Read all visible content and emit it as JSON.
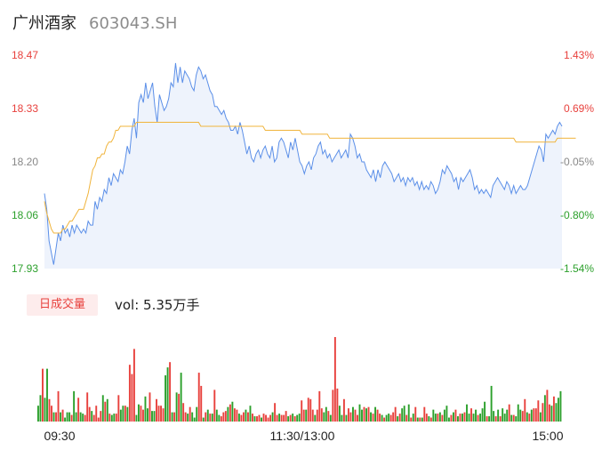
{
  "stock": {
    "name": "广州酒家",
    "code": "603043.SH"
  },
  "volume_tab": {
    "label": "日成交量",
    "vol_prefix": "vol: ",
    "vol_value": "5.35万手"
  },
  "colors": {
    "price": "#5b8fe8",
    "avg": "#f0b43c",
    "up": "#e8413d",
    "down": "#2ca02c",
    "fill": "#eef3fc",
    "neutral": "#888888"
  },
  "chart_data": [
    {
      "type": "line",
      "name": "intraday-price",
      "y_ticks": [
        "18.47",
        "18.33",
        "18.20",
        "18.06",
        "17.93"
      ],
      "pct_ticks": [
        "1.43%",
        "0.69%",
        "-0.05%",
        "-0.80%",
        "-1.54%"
      ],
      "ylim": [
        17.93,
        18.47
      ],
      "series": [
        {
          "values": [
            18.12,
            18.08,
            18.0,
            17.97,
            17.94,
            17.98,
            18.02,
            18.0,
            18.04,
            18.02,
            18.03,
            18.01,
            18.04,
            18.02,
            18.04,
            18.03,
            18.02,
            18.03,
            18.02,
            18.05,
            18.04,
            18.04,
            18.1,
            18.08,
            18.11,
            18.1,
            18.13,
            18.12,
            18.16,
            18.14,
            18.17,
            18.16,
            18.15,
            18.18,
            18.17,
            18.2,
            18.24,
            18.22,
            18.28,
            18.31,
            18.26,
            18.35,
            18.37,
            18.35,
            18.4,
            18.36,
            18.38,
            18.4,
            18.34,
            18.3,
            18.37,
            18.35,
            18.33,
            18.34,
            18.36,
            18.4,
            18.39,
            18.45,
            18.4,
            18.44,
            18.4,
            18.43,
            18.42,
            18.41,
            18.39,
            18.38,
            18.42,
            18.44,
            18.43,
            18.41,
            18.42,
            18.4,
            18.38,
            18.37,
            18.34,
            18.34,
            18.33,
            18.32,
            18.33,
            18.31,
            18.3,
            18.28,
            18.28,
            18.29,
            18.27,
            18.3,
            18.28,
            18.25,
            18.22,
            18.24,
            18.21,
            18.2,
            18.22,
            18.23,
            18.21,
            18.23,
            18.24,
            18.22,
            18.21,
            18.24,
            18.2,
            18.21,
            18.25,
            18.26,
            18.25,
            18.23,
            18.21,
            18.25,
            18.23,
            18.26,
            18.23,
            18.2,
            18.19,
            18.17,
            18.19,
            18.2,
            18.18,
            18.21,
            18.22,
            18.24,
            18.25,
            18.22,
            18.23,
            18.21,
            18.22,
            18.2,
            18.21,
            18.22,
            18.23,
            18.21,
            18.22,
            18.23,
            18.21,
            18.27,
            18.26,
            18.24,
            18.21,
            18.22,
            18.2,
            18.2,
            18.18,
            18.17,
            18.16,
            18.18,
            18.15,
            18.18,
            18.16,
            18.19,
            18.2,
            18.19,
            18.18,
            18.17,
            18.15,
            18.16,
            18.17,
            18.15,
            18.16,
            18.14,
            18.16,
            18.15,
            18.16,
            18.14,
            18.15,
            18.13,
            18.15,
            18.13,
            18.14,
            18.13,
            18.15,
            18.14,
            18.12,
            18.13,
            18.15,
            18.18,
            18.17,
            18.19,
            18.18,
            18.17,
            18.15,
            18.16,
            18.13,
            18.16,
            18.15,
            18.16,
            18.17,
            18.18,
            18.16,
            18.13,
            18.14,
            18.12,
            18.13,
            18.12,
            18.13,
            18.12,
            18.11,
            18.14,
            18.15,
            18.16,
            18.15,
            18.14,
            18.13,
            18.15,
            18.14,
            18.12,
            18.14,
            18.12,
            18.13,
            18.14,
            18.13,
            18.13,
            18.14,
            18.16,
            18.18,
            18.2,
            18.22,
            18.24,
            18.23,
            18.2,
            18.27,
            18.26,
            18.27,
            18.28,
            18.27,
            18.29,
            18.3,
            18.29
          ]
        },
        {
          "values": [
            18.1,
            18.07,
            18.05,
            18.03,
            18.02,
            18.02,
            18.02,
            18.02,
            18.03,
            18.03,
            18.04,
            18.05,
            18.05,
            18.06,
            18.07,
            18.08,
            18.08,
            18.08,
            18.1,
            18.12,
            18.15,
            18.18,
            18.19,
            18.21,
            18.21,
            18.22,
            18.22,
            18.24,
            18.25,
            18.25,
            18.26,
            18.28,
            18.28,
            18.29,
            18.29,
            18.29,
            18.29,
            18.29,
            18.29,
            18.29,
            18.3,
            18.3,
            18.3,
            18.3,
            18.3,
            18.3,
            18.3,
            18.3,
            18.3,
            18.3,
            18.3,
            18.3,
            18.3,
            18.3,
            18.3,
            18.3,
            18.3,
            18.3,
            18.3,
            18.3,
            18.3,
            18.3,
            18.3,
            18.3,
            18.3,
            18.3,
            18.3,
            18.3,
            18.29,
            18.29,
            18.29,
            18.29,
            18.29,
            18.29,
            18.29,
            18.29,
            18.29,
            18.29,
            18.29,
            18.29,
            18.29,
            18.29,
            18.29,
            18.29,
            18.29,
            18.29,
            18.29,
            18.29,
            18.29,
            18.29,
            18.29,
            18.29,
            18.29,
            18.29,
            18.29,
            18.29,
            18.28,
            18.28,
            18.28,
            18.28,
            18.28,
            18.28,
            18.28,
            18.28,
            18.28,
            18.28,
            18.28,
            18.28,
            18.28,
            18.28,
            18.28,
            18.28,
            18.27,
            18.27,
            18.27,
            18.27,
            18.27,
            18.27,
            18.27,
            18.27,
            18.27,
            18.27,
            18.27,
            18.27,
            18.26,
            18.26,
            18.26,
            18.26,
            18.26,
            18.26,
            18.26,
            18.26,
            18.26,
            18.26,
            18.26,
            18.26,
            18.26,
            18.26,
            18.26,
            18.26,
            18.26,
            18.26,
            18.26,
            18.26,
            18.26,
            18.26,
            18.26,
            18.26,
            18.26,
            18.26,
            18.26,
            18.26,
            18.26,
            18.26,
            18.26,
            18.26,
            18.26,
            18.26,
            18.26,
            18.26,
            18.26,
            18.26,
            18.26,
            18.26,
            18.26,
            18.26,
            18.26,
            18.26,
            18.26,
            18.26,
            18.26,
            18.26,
            18.26,
            18.26,
            18.26,
            18.26,
            18.26,
            18.26,
            18.26,
            18.26,
            18.26,
            18.26,
            18.26,
            18.26,
            18.26,
            18.26,
            18.26,
            18.26,
            18.26,
            18.26,
            18.26,
            18.26,
            18.26,
            18.26,
            18.26,
            18.26,
            18.26,
            18.26,
            18.26,
            18.26,
            18.26,
            18.26,
            18.26,
            18.26,
            18.26,
            18.25,
            18.25,
            18.25,
            18.25,
            18.25,
            18.25,
            18.25,
            18.25,
            18.25,
            18.25,
            18.25,
            18.25,
            18.25,
            18.25,
            18.25,
            18.25,
            18.25,
            18.25,
            18.26,
            18.26,
            18.26,
            18.26,
            18.26,
            18.26,
            18.26,
            18.26,
            18.26
          ]
        }
      ]
    },
    {
      "type": "bar",
      "name": "volume",
      "x_ticks": [
        "09:30",
        "11:30/13:00",
        "15:00"
      ],
      "values": [
        12,
        20,
        40,
        18,
        40,
        17,
        12,
        7,
        7,
        23,
        7,
        9,
        3,
        7,
        7,
        5,
        23,
        7,
        18,
        7,
        6,
        5,
        22,
        11,
        8,
        5,
        12,
        3,
        8,
        20,
        15,
        17,
        6,
        5,
        6,
        6,
        20,
        9,
        12,
        12,
        11,
        43,
        36,
        55,
        5,
        13,
        12,
        9,
        19,
        10,
        22,
        8,
        8,
        17,
        12,
        12,
        10,
        35,
        41,
        45,
        7,
        7,
        22,
        21,
        37,
        14,
        7,
        6,
        11,
        7,
        3,
        11,
        37,
        27,
        3,
        7,
        9,
        6,
        6,
        24,
        9,
        5,
        4,
        7,
        8,
        11,
        13,
        15,
        10,
        9,
        6,
        5,
        7,
        9,
        7,
        12,
        6,
        4,
        4,
        5,
        3,
        6,
        5,
        3,
        5,
        7,
        14,
        5,
        6,
        5,
        5,
        8,
        4,
        5,
        6,
        4,
        5,
        6,
        16,
        9,
        9,
        18,
        17,
        9,
        5,
        9,
        23,
        10,
        7,
        11,
        8,
        5,
        24,
        64,
        25,
        12,
        5,
        17,
        5,
        10,
        7,
        11,
        9,
        5,
        13,
        9,
        11,
        10,
        11,
        7,
        6,
        11,
        9,
        6,
        5,
        3,
        5,
        6,
        5,
        7,
        11,
        4,
        6,
        10,
        12,
        5,
        13,
        3,
        6,
        11,
        3,
        3,
        3,
        11,
        6,
        4,
        3,
        9,
        6,
        6,
        7,
        5,
        9,
        12,
        3,
        5,
        7,
        9,
        4,
        6,
        6,
        7,
        13,
        6,
        10,
        6,
        9,
        5,
        6,
        10,
        15,
        4,
        4,
        27,
        8,
        4,
        9,
        4,
        10,
        6,
        9,
        13,
        5,
        5,
        4,
        13,
        9,
        8,
        17,
        7,
        6,
        9,
        10,
        10,
        16,
        7,
        14,
        20,
        24,
        13,
        12,
        19,
        14,
        18,
        23
      ],
      "up": [
        0,
        0,
        1,
        0,
        0,
        1,
        1,
        0,
        1,
        1,
        0,
        1,
        0,
        0,
        0,
        1,
        0,
        0,
        1,
        0,
        0,
        1,
        1,
        1,
        0,
        1,
        1,
        1,
        1,
        0,
        1,
        0,
        1,
        0,
        0,
        1,
        1,
        0,
        0,
        1,
        0,
        1,
        1,
        1,
        0,
        0,
        1,
        1,
        0,
        0,
        1,
        0,
        0,
        1,
        1,
        1,
        1,
        0,
        0,
        1,
        0,
        1,
        0,
        1,
        0,
        1,
        1,
        0,
        1,
        0,
        0,
        0,
        1,
        1,
        0,
        1,
        0,
        1,
        0,
        1,
        0,
        0,
        1,
        1,
        1,
        0,
        1,
        0,
        1,
        1,
        0,
        1,
        1,
        0,
        1,
        0,
        1,
        0,
        1,
        1,
        0,
        1,
        1,
        1,
        1,
        0,
        1,
        1,
        0,
        1,
        1,
        1,
        0,
        1,
        0,
        1,
        0,
        0,
        1,
        1,
        0,
        1,
        1,
        1,
        0,
        1,
        1,
        1,
        0,
        0,
        1,
        0,
        1,
        1,
        1,
        0,
        0,
        1,
        0,
        1,
        1,
        0,
        1,
        1,
        0,
        0,
        1,
        0,
        1,
        0,
        1,
        0,
        1,
        1,
        0,
        1,
        0,
        0,
        1,
        1,
        1,
        0,
        1,
        0,
        0,
        1,
        0,
        1,
        0,
        1,
        0,
        1,
        0,
        1,
        1,
        0,
        1,
        0,
        0,
        1,
        0,
        1,
        0,
        0,
        0,
        1,
        0,
        1,
        0,
        1,
        0,
        1,
        0,
        0,
        1,
        0,
        0,
        1,
        0,
        0,
        0,
        1,
        0,
        0,
        0,
        1,
        0,
        1,
        0,
        0,
        0,
        1,
        0,
        1,
        0,
        0,
        0,
        1,
        1,
        0,
        1,
        0,
        1,
        1,
        1,
        0,
        1,
        0,
        1,
        1,
        0,
        1,
        0
      ]
    }
  ]
}
